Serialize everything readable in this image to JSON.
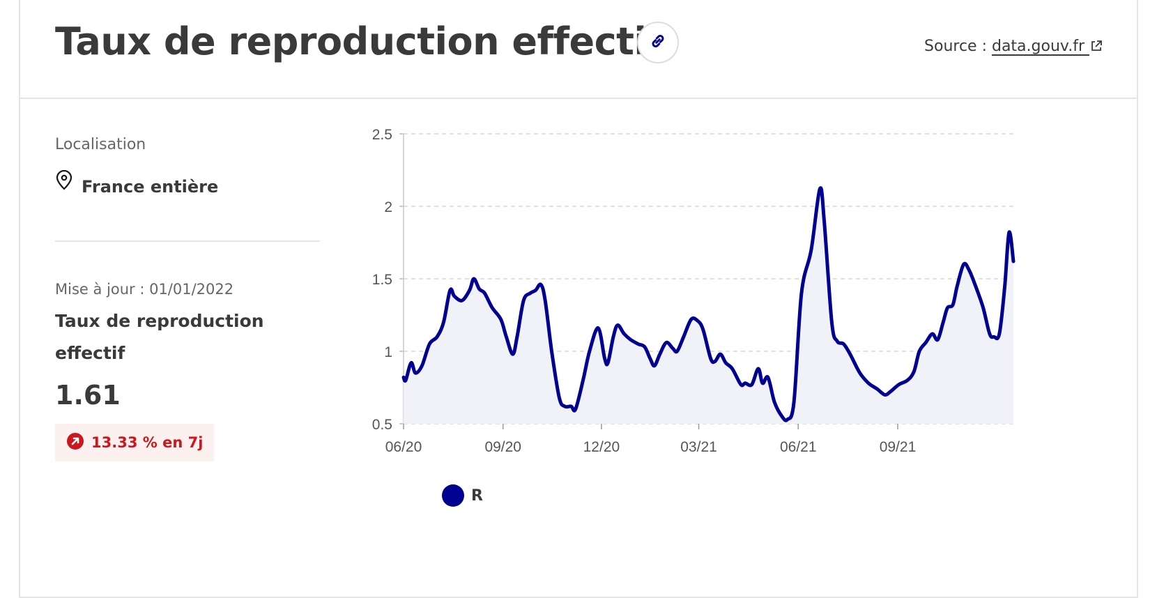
{
  "header": {
    "title": "Taux de reproduction effectif",
    "source_label": "Source :",
    "source_link": "data.gouv.fr",
    "link_icon": "link-icon",
    "external_icon": "external-link-icon"
  },
  "panel": {
    "location_label": "Localisation",
    "location_value": "France entière",
    "update_label": "Mise à jour : 01/01/2022",
    "indicator_title": "Taux de reproduction effectif",
    "indicator_value": "1.61",
    "trend_text": "13.33 % en 7j",
    "trend_icon": "arrow-up-right-icon"
  },
  "colors": {
    "accent": "#000091",
    "area_fill": "#f1f1f8",
    "trend_bg": "#fdf1f0",
    "trend_text": "#c9191e"
  },
  "chart_data": {
    "type": "area",
    "x_ticks": [
      "06/20",
      "09/20",
      "12/20",
      "03/21",
      "06/21",
      "09/21"
    ],
    "y_ticks": [
      "0.5",
      "1",
      "1.5",
      "2",
      "2.5"
    ],
    "ylim": [
      0.5,
      2.5
    ],
    "grid": true,
    "legend_position": "bottom-left",
    "series": [
      {
        "name": "R",
        "color": "#000091",
        "points": [
          [
            "2020-06-01",
            0.82
          ],
          [
            "2020-06-03",
            0.8
          ],
          [
            "2020-06-08",
            0.92
          ],
          [
            "2020-06-12",
            0.85
          ],
          [
            "2020-06-18",
            0.9
          ],
          [
            "2020-06-25",
            1.05
          ],
          [
            "2020-07-02",
            1.1
          ],
          [
            "2020-07-08",
            1.2
          ],
          [
            "2020-07-14",
            1.42
          ],
          [
            "2020-07-18",
            1.38
          ],
          [
            "2020-07-25",
            1.35
          ],
          [
            "2020-08-01",
            1.42
          ],
          [
            "2020-08-05",
            1.5
          ],
          [
            "2020-08-10",
            1.43
          ],
          [
            "2020-08-15",
            1.4
          ],
          [
            "2020-08-22",
            1.3
          ],
          [
            "2020-08-30",
            1.22
          ],
          [
            "2020-09-04",
            1.1
          ],
          [
            "2020-09-10",
            0.98
          ],
          [
            "2020-09-14",
            1.1
          ],
          [
            "2020-09-20",
            1.35
          ],
          [
            "2020-09-26",
            1.4
          ],
          [
            "2020-10-01",
            1.42
          ],
          [
            "2020-10-06",
            1.46
          ],
          [
            "2020-10-10",
            1.35
          ],
          [
            "2020-10-16",
            1.0
          ],
          [
            "2020-10-23",
            0.68
          ],
          [
            "2020-10-28",
            0.62
          ],
          [
            "2020-11-03",
            0.62
          ],
          [
            "2020-11-07",
            0.6
          ],
          [
            "2020-11-14",
            0.8
          ],
          [
            "2020-11-20",
            1.0
          ],
          [
            "2020-11-28",
            1.16
          ],
          [
            "2020-12-04",
            0.95
          ],
          [
            "2020-12-07",
            0.92
          ],
          [
            "2020-12-12",
            1.1
          ],
          [
            "2020-12-16",
            1.18
          ],
          [
            "2020-12-22",
            1.12
          ],
          [
            "2020-12-28",
            1.08
          ],
          [
            "2021-01-04",
            1.05
          ],
          [
            "2021-01-10",
            1.03
          ],
          [
            "2021-01-15",
            0.95
          ],
          [
            "2021-01-19",
            0.9
          ],
          [
            "2021-01-24",
            0.98
          ],
          [
            "2021-01-30",
            1.06
          ],
          [
            "2021-02-05",
            1.02
          ],
          [
            "2021-02-09",
            1.0
          ],
          [
            "2021-02-15",
            1.1
          ],
          [
            "2021-02-22",
            1.22
          ],
          [
            "2021-02-28",
            1.21
          ],
          [
            "2021-03-05",
            1.15
          ],
          [
            "2021-03-12",
            0.95
          ],
          [
            "2021-03-16",
            0.93
          ],
          [
            "2021-03-21",
            0.98
          ],
          [
            "2021-03-26",
            0.92
          ],
          [
            "2021-04-01",
            0.88
          ],
          [
            "2021-04-09",
            0.77
          ],
          [
            "2021-04-13",
            0.78
          ],
          [
            "2021-04-19",
            0.77
          ],
          [
            "2021-04-25",
            0.88
          ],
          [
            "2021-04-29",
            0.78
          ],
          [
            "2021-05-04",
            0.82
          ],
          [
            "2021-05-10",
            0.65
          ],
          [
            "2021-05-17",
            0.55
          ],
          [
            "2021-05-22",
            0.53
          ],
          [
            "2021-05-28",
            0.65
          ],
          [
            "2021-06-04",
            1.4
          ],
          [
            "2021-06-13",
            1.7
          ],
          [
            "2021-06-21",
            2.12
          ],
          [
            "2021-06-25",
            1.9
          ],
          [
            "2021-07-02",
            1.2
          ],
          [
            "2021-07-07",
            1.07
          ],
          [
            "2021-07-13",
            1.05
          ],
          [
            "2021-07-19",
            0.98
          ],
          [
            "2021-07-28",
            0.85
          ],
          [
            "2021-08-05",
            0.78
          ],
          [
            "2021-08-13",
            0.74
          ],
          [
            "2021-08-20",
            0.7
          ],
          [
            "2021-08-25",
            0.72
          ],
          [
            "2021-09-02",
            0.77
          ],
          [
            "2021-09-10",
            0.8
          ],
          [
            "2021-09-16",
            0.86
          ],
          [
            "2021-09-21",
            1.0
          ],
          [
            "2021-09-27",
            1.06
          ],
          [
            "2021-10-03",
            1.12
          ],
          [
            "2021-10-08",
            1.08
          ],
          [
            "2021-10-13",
            1.2
          ],
          [
            "2021-10-17",
            1.3
          ],
          [
            "2021-10-22",
            1.32
          ],
          [
            "2021-10-26",
            1.45
          ],
          [
            "2021-11-01",
            1.6
          ],
          [
            "2021-11-06",
            1.56
          ],
          [
            "2021-11-12",
            1.45
          ],
          [
            "2021-11-19",
            1.3
          ],
          [
            "2021-11-25",
            1.12
          ],
          [
            "2021-11-29",
            1.1
          ],
          [
            "2021-12-04",
            1.12
          ],
          [
            "2021-12-09",
            1.45
          ],
          [
            "2021-12-13",
            1.82
          ],
          [
            "2021-12-17",
            1.62
          ]
        ]
      }
    ]
  }
}
